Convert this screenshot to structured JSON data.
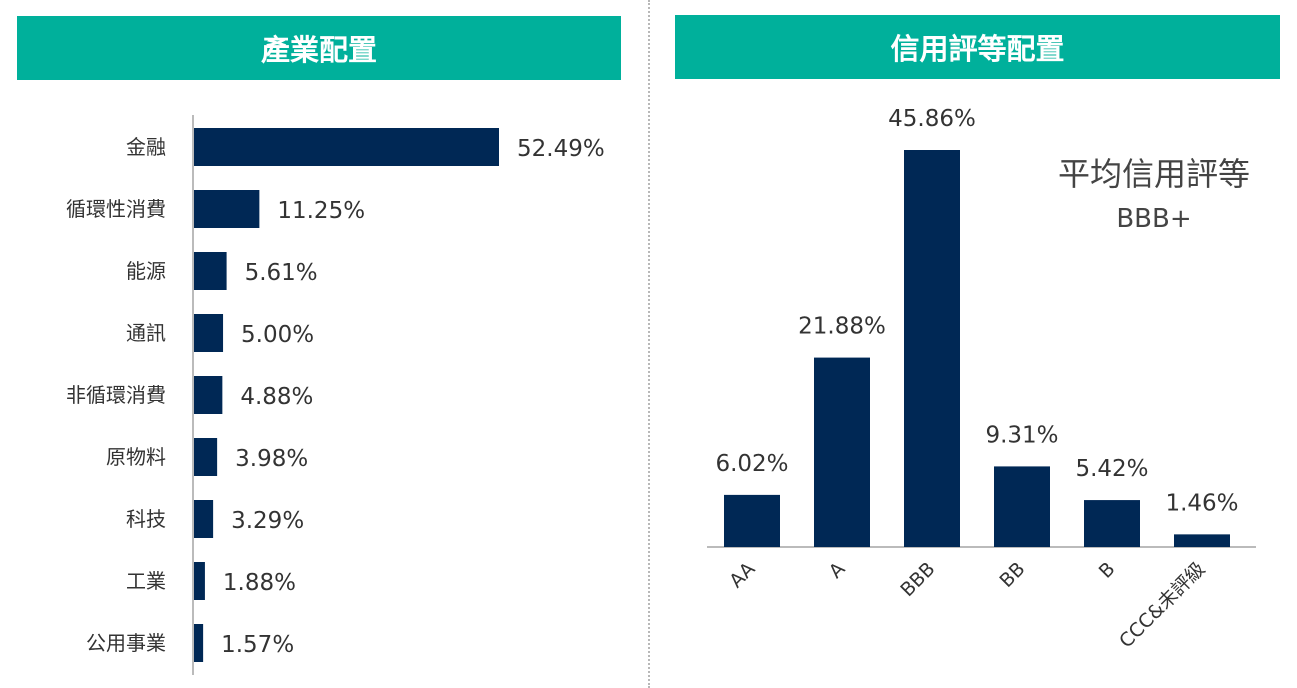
{
  "chart_data": [
    {
      "type": "bar",
      "orientation": "horizontal",
      "title": "產業配置",
      "categories": [
        "金融",
        "循環性消費",
        "能源",
        "通訊",
        "非循環消費",
        "原物料",
        "科技",
        "工業",
        "公用事業"
      ],
      "values": [
        52.49,
        11.25,
        5.61,
        5.0,
        4.88,
        3.98,
        3.29,
        1.88,
        1.57
      ],
      "value_labels": [
        "52.49%",
        "11.25%",
        "5.61%",
        "5.00%",
        "4.88%",
        "3.98%",
        "3.29%",
        "1.88%",
        "1.57%"
      ],
      "color": "#002855"
    },
    {
      "type": "bar",
      "orientation": "vertical",
      "title": "信用評等配置",
      "categories": [
        "AA",
        "A",
        "BBB",
        "BB",
        "B",
        "CCC&未評級"
      ],
      "values": [
        6.02,
        21.88,
        45.86,
        9.31,
        5.42,
        1.46
      ],
      "value_labels": [
        "6.02%",
        "21.88%",
        "45.86%",
        "9.31%",
        "5.42%",
        "1.46%"
      ],
      "annotation": {
        "title": "平均信用評等",
        "value": "BBB+"
      },
      "color": "#002855"
    }
  ],
  "colors": {
    "header": "#00b09b",
    "bar": "#002855",
    "text": "#333333"
  }
}
